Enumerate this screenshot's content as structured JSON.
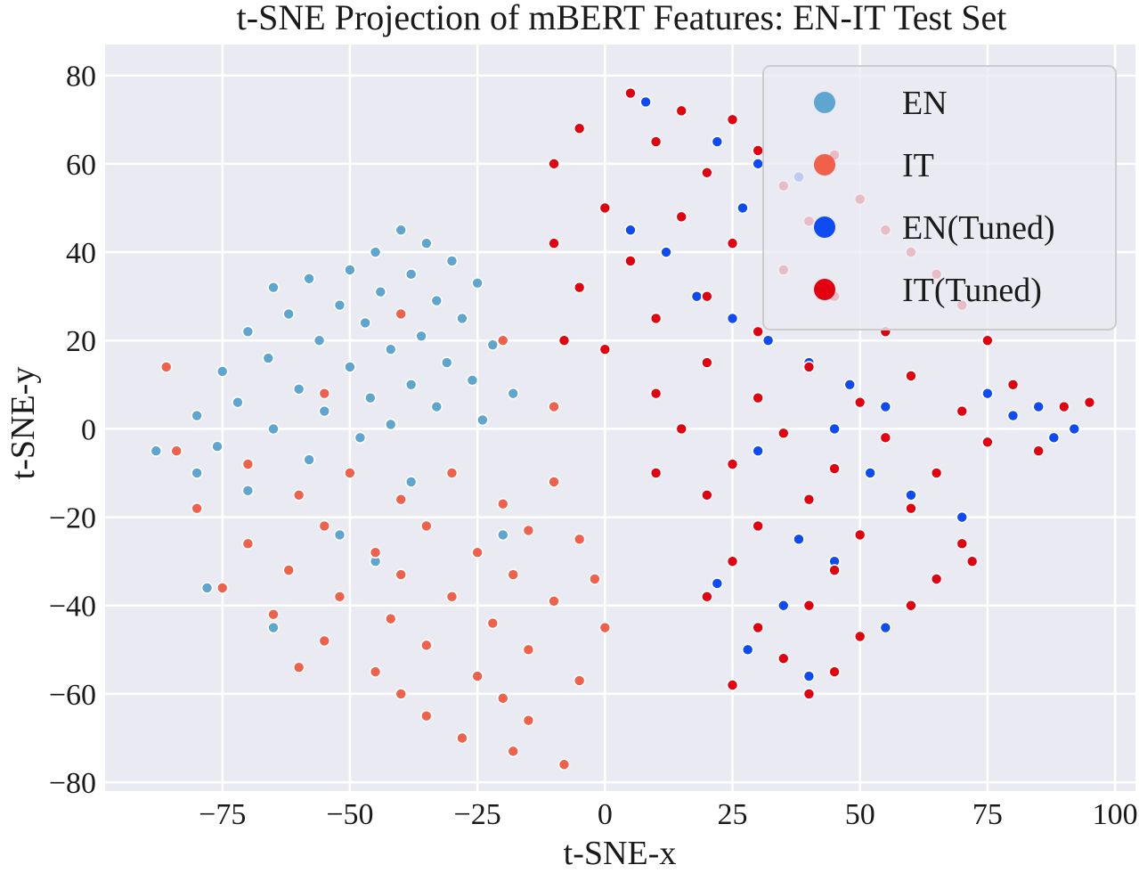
{
  "chart_data": {
    "type": "scatter",
    "title": "t-SNE Projection of mBERT Features: EN-IT Test Set",
    "xlabel": "t-SNE-x",
    "ylabel": "t-SNE-y",
    "xlim": [
      -98,
      104
    ],
    "ylim": [
      -82,
      87
    ],
    "xticks": [
      -75,
      -50,
      -25,
      0,
      25,
      50,
      75,
      100
    ],
    "yticks": [
      -80,
      -60,
      -40,
      -20,
      0,
      20,
      40,
      60,
      80
    ],
    "xtick_labels": [
      "−75",
      "−50",
      "−25",
      "0",
      "25",
      "50",
      "75",
      "100"
    ],
    "ytick_labels": [
      "−80",
      "−60",
      "−40",
      "−20",
      "0",
      "20",
      "40",
      "60",
      "80"
    ],
    "grid": true,
    "legend_position": "top-right",
    "series": [
      {
        "name": "EN",
        "color": "#5ea5cf",
        "points": [
          [
            -40,
            45
          ],
          [
            -35,
            42
          ],
          [
            -45,
            40
          ],
          [
            -30,
            38
          ],
          [
            -50,
            36
          ],
          [
            -38,
            35
          ],
          [
            -58,
            34
          ],
          [
            -25,
            33
          ],
          [
            -65,
            32
          ],
          [
            -44,
            31
          ],
          [
            -33,
            29
          ],
          [
            -52,
            28
          ],
          [
            -62,
            26
          ],
          [
            -28,
            25
          ],
          [
            -47,
            24
          ],
          [
            -70,
            22
          ],
          [
            -36,
            21
          ],
          [
            -56,
            20
          ],
          [
            -22,
            19
          ],
          [
            -42,
            18
          ],
          [
            -66,
            16
          ],
          [
            -31,
            15
          ],
          [
            -50,
            14
          ],
          [
            -75,
            13
          ],
          [
            -26,
            11
          ],
          [
            -38,
            10
          ],
          [
            -60,
            9
          ],
          [
            -18,
            8
          ],
          [
            -46,
            7
          ],
          [
            -72,
            6
          ],
          [
            -33,
            5
          ],
          [
            -55,
            4
          ],
          [
            -80,
            3
          ],
          [
            -24,
            2
          ],
          [
            -42,
            1
          ],
          [
            -65,
            0
          ],
          [
            -48,
            -2
          ],
          [
            -76,
            -4
          ],
          [
            -88,
            -5
          ],
          [
            -58,
            -7
          ],
          [
            -80,
            -10
          ],
          [
            -38,
            -12
          ],
          [
            -70,
            -14
          ],
          [
            -20,
            -24
          ],
          [
            -45,
            -30
          ],
          [
            -65,
            -45
          ],
          [
            -78,
            -36
          ],
          [
            -52,
            -24
          ]
        ]
      },
      {
        "name": "IT",
        "color": "#f0604a",
        "points": [
          [
            -70,
            -8
          ],
          [
            -50,
            -10
          ],
          [
            -30,
            -10
          ],
          [
            -10,
            -12
          ],
          [
            -60,
            -15
          ],
          [
            -40,
            -16
          ],
          [
            -20,
            -17
          ],
          [
            -80,
            -18
          ],
          [
            -55,
            -22
          ],
          [
            -35,
            -22
          ],
          [
            -15,
            -23
          ],
          [
            -5,
            -25
          ],
          [
            -70,
            -26
          ],
          [
            -45,
            -28
          ],
          [
            -25,
            -28
          ],
          [
            -62,
            -32
          ],
          [
            -40,
            -33
          ],
          [
            -18,
            -33
          ],
          [
            -2,
            -34
          ],
          [
            -75,
            -36
          ],
          [
            -52,
            -38
          ],
          [
            -30,
            -38
          ],
          [
            -10,
            -39
          ],
          [
            -65,
            -42
          ],
          [
            -42,
            -43
          ],
          [
            -22,
            -44
          ],
          [
            0,
            -45
          ],
          [
            -55,
            -48
          ],
          [
            -35,
            -49
          ],
          [
            -15,
            -50
          ],
          [
            -60,
            -54
          ],
          [
            -45,
            -55
          ],
          [
            -25,
            -56
          ],
          [
            -5,
            -57
          ],
          [
            -40,
            -60
          ],
          [
            -20,
            -61
          ],
          [
            -35,
            -65
          ],
          [
            -15,
            -66
          ],
          [
            -28,
            -70
          ],
          [
            -18,
            -73
          ],
          [
            -8,
            -76
          ],
          [
            -84,
            -5
          ],
          [
            -86,
            14
          ],
          [
            -20,
            20
          ],
          [
            -10,
            5
          ],
          [
            -40,
            26
          ],
          [
            -55,
            8
          ]
        ]
      },
      {
        "name": "EN(Tuned)",
        "color": "#0f4bf5",
        "points": [
          [
            8,
            74
          ],
          [
            22,
            65
          ],
          [
            30,
            60
          ],
          [
            38,
            57
          ],
          [
            27,
            50
          ],
          [
            5,
            45
          ],
          [
            12,
            40
          ],
          [
            18,
            30
          ],
          [
            25,
            25
          ],
          [
            32,
            20
          ],
          [
            40,
            15
          ],
          [
            48,
            10
          ],
          [
            55,
            5
          ],
          [
            45,
            0
          ],
          [
            30,
            -5
          ],
          [
            52,
            -10
          ],
          [
            60,
            -15
          ],
          [
            70,
            -20
          ],
          [
            38,
            -25
          ],
          [
            45,
            -30
          ],
          [
            22,
            -35
          ],
          [
            35,
            -40
          ],
          [
            55,
            -45
          ],
          [
            28,
            -50
          ],
          [
            40,
            -56
          ],
          [
            85,
            5
          ],
          [
            88,
            -2
          ],
          [
            80,
            3
          ],
          [
            92,
            0
          ],
          [
            75,
            8
          ]
        ]
      },
      {
        "name": "IT(Tuned)",
        "color": "#e3000f",
        "points": [
          [
            5,
            76
          ],
          [
            15,
            72
          ],
          [
            25,
            70
          ],
          [
            -5,
            68
          ],
          [
            10,
            65
          ],
          [
            30,
            63
          ],
          [
            45,
            62
          ],
          [
            -10,
            60
          ],
          [
            20,
            58
          ],
          [
            35,
            55
          ],
          [
            50,
            52
          ],
          [
            0,
            50
          ],
          [
            15,
            48
          ],
          [
            40,
            47
          ],
          [
            55,
            45
          ],
          [
            -10,
            42
          ],
          [
            25,
            42
          ],
          [
            60,
            40
          ],
          [
            5,
            38
          ],
          [
            35,
            36
          ],
          [
            65,
            35
          ],
          [
            -5,
            32
          ],
          [
            20,
            30
          ],
          [
            45,
            30
          ],
          [
            70,
            28
          ],
          [
            10,
            25
          ],
          [
            30,
            22
          ],
          [
            55,
            22
          ],
          [
            75,
            20
          ],
          [
            0,
            18
          ],
          [
            20,
            15
          ],
          [
            40,
            14
          ],
          [
            60,
            12
          ],
          [
            80,
            10
          ],
          [
            10,
            8
          ],
          [
            30,
            7
          ],
          [
            50,
            6
          ],
          [
            70,
            4
          ],
          [
            90,
            5
          ],
          [
            15,
            0
          ],
          [
            35,
            -1
          ],
          [
            55,
            -2
          ],
          [
            75,
            -3
          ],
          [
            25,
            -8
          ],
          [
            45,
            -9
          ],
          [
            65,
            -10
          ],
          [
            85,
            -5
          ],
          [
            20,
            -15
          ],
          [
            40,
            -16
          ],
          [
            60,
            -18
          ],
          [
            30,
            -22
          ],
          [
            50,
            -24
          ],
          [
            70,
            -26
          ],
          [
            25,
            -30
          ],
          [
            45,
            -32
          ],
          [
            65,
            -34
          ],
          [
            20,
            -38
          ],
          [
            40,
            -40
          ],
          [
            60,
            -40
          ],
          [
            30,
            -45
          ],
          [
            50,
            -47
          ],
          [
            35,
            -52
          ],
          [
            45,
            -55
          ],
          [
            40,
            -60
          ],
          [
            25,
            -58
          ],
          [
            72,
            -30
          ],
          [
            95,
            6
          ],
          [
            -8,
            20
          ],
          [
            10,
            -10
          ]
        ]
      }
    ]
  }
}
